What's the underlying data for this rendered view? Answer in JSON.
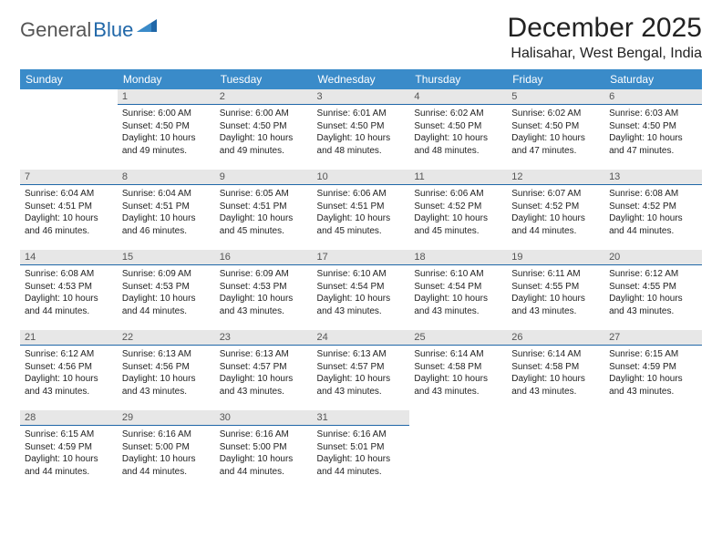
{
  "logo": {
    "text1": "General",
    "text2": "Blue"
  },
  "title": "December 2025",
  "location": "Halisahar, West Bengal, India",
  "colors": {
    "header_bg": "#3a8bc9",
    "header_text": "#ffffff",
    "daynum_bg": "#e7e7e7",
    "daynum_border": "#2067a8",
    "daynum_text": "#555555",
    "body_text": "#222222",
    "page_bg": "#ffffff",
    "logo_gray": "#555555",
    "logo_blue": "#2067a8"
  },
  "typography": {
    "title_fontsize": 30,
    "location_fontsize": 16,
    "dayheader_fontsize": 12,
    "daynum_fontsize": 11,
    "body_fontsize": 10,
    "logo_fontsize": 22
  },
  "day_headers": [
    "Sunday",
    "Monday",
    "Tuesday",
    "Wednesday",
    "Thursday",
    "Friday",
    "Saturday"
  ],
  "weeks": [
    [
      null,
      {
        "n": "1",
        "sr": "6:00 AM",
        "ss": "4:50 PM",
        "dl": "10 hours and 49 minutes."
      },
      {
        "n": "2",
        "sr": "6:00 AM",
        "ss": "4:50 PM",
        "dl": "10 hours and 49 minutes."
      },
      {
        "n": "3",
        "sr": "6:01 AM",
        "ss": "4:50 PM",
        "dl": "10 hours and 48 minutes."
      },
      {
        "n": "4",
        "sr": "6:02 AM",
        "ss": "4:50 PM",
        "dl": "10 hours and 48 minutes."
      },
      {
        "n": "5",
        "sr": "6:02 AM",
        "ss": "4:50 PM",
        "dl": "10 hours and 47 minutes."
      },
      {
        "n": "6",
        "sr": "6:03 AM",
        "ss": "4:50 PM",
        "dl": "10 hours and 47 minutes."
      }
    ],
    [
      {
        "n": "7",
        "sr": "6:04 AM",
        "ss": "4:51 PM",
        "dl": "10 hours and 46 minutes."
      },
      {
        "n": "8",
        "sr": "6:04 AM",
        "ss": "4:51 PM",
        "dl": "10 hours and 46 minutes."
      },
      {
        "n": "9",
        "sr": "6:05 AM",
        "ss": "4:51 PM",
        "dl": "10 hours and 45 minutes."
      },
      {
        "n": "10",
        "sr": "6:06 AM",
        "ss": "4:51 PM",
        "dl": "10 hours and 45 minutes."
      },
      {
        "n": "11",
        "sr": "6:06 AM",
        "ss": "4:52 PM",
        "dl": "10 hours and 45 minutes."
      },
      {
        "n": "12",
        "sr": "6:07 AM",
        "ss": "4:52 PM",
        "dl": "10 hours and 44 minutes."
      },
      {
        "n": "13",
        "sr": "6:08 AM",
        "ss": "4:52 PM",
        "dl": "10 hours and 44 minutes."
      }
    ],
    [
      {
        "n": "14",
        "sr": "6:08 AM",
        "ss": "4:53 PM",
        "dl": "10 hours and 44 minutes."
      },
      {
        "n": "15",
        "sr": "6:09 AM",
        "ss": "4:53 PM",
        "dl": "10 hours and 44 minutes."
      },
      {
        "n": "16",
        "sr": "6:09 AM",
        "ss": "4:53 PM",
        "dl": "10 hours and 43 minutes."
      },
      {
        "n": "17",
        "sr": "6:10 AM",
        "ss": "4:54 PM",
        "dl": "10 hours and 43 minutes."
      },
      {
        "n": "18",
        "sr": "6:10 AM",
        "ss": "4:54 PM",
        "dl": "10 hours and 43 minutes."
      },
      {
        "n": "19",
        "sr": "6:11 AM",
        "ss": "4:55 PM",
        "dl": "10 hours and 43 minutes."
      },
      {
        "n": "20",
        "sr": "6:12 AM",
        "ss": "4:55 PM",
        "dl": "10 hours and 43 minutes."
      }
    ],
    [
      {
        "n": "21",
        "sr": "6:12 AM",
        "ss": "4:56 PM",
        "dl": "10 hours and 43 minutes."
      },
      {
        "n": "22",
        "sr": "6:13 AM",
        "ss": "4:56 PM",
        "dl": "10 hours and 43 minutes."
      },
      {
        "n": "23",
        "sr": "6:13 AM",
        "ss": "4:57 PM",
        "dl": "10 hours and 43 minutes."
      },
      {
        "n": "24",
        "sr": "6:13 AM",
        "ss": "4:57 PM",
        "dl": "10 hours and 43 minutes."
      },
      {
        "n": "25",
        "sr": "6:14 AM",
        "ss": "4:58 PM",
        "dl": "10 hours and 43 minutes."
      },
      {
        "n": "26",
        "sr": "6:14 AM",
        "ss": "4:58 PM",
        "dl": "10 hours and 43 minutes."
      },
      {
        "n": "27",
        "sr": "6:15 AM",
        "ss": "4:59 PM",
        "dl": "10 hours and 43 minutes."
      }
    ],
    [
      {
        "n": "28",
        "sr": "6:15 AM",
        "ss": "4:59 PM",
        "dl": "10 hours and 44 minutes."
      },
      {
        "n": "29",
        "sr": "6:16 AM",
        "ss": "5:00 PM",
        "dl": "10 hours and 44 minutes."
      },
      {
        "n": "30",
        "sr": "6:16 AM",
        "ss": "5:00 PM",
        "dl": "10 hours and 44 minutes."
      },
      {
        "n": "31",
        "sr": "6:16 AM",
        "ss": "5:01 PM",
        "dl": "10 hours and 44 minutes."
      },
      null,
      null,
      null
    ]
  ],
  "labels": {
    "sunrise": "Sunrise: ",
    "sunset": "Sunset: ",
    "daylight": "Daylight: "
  }
}
